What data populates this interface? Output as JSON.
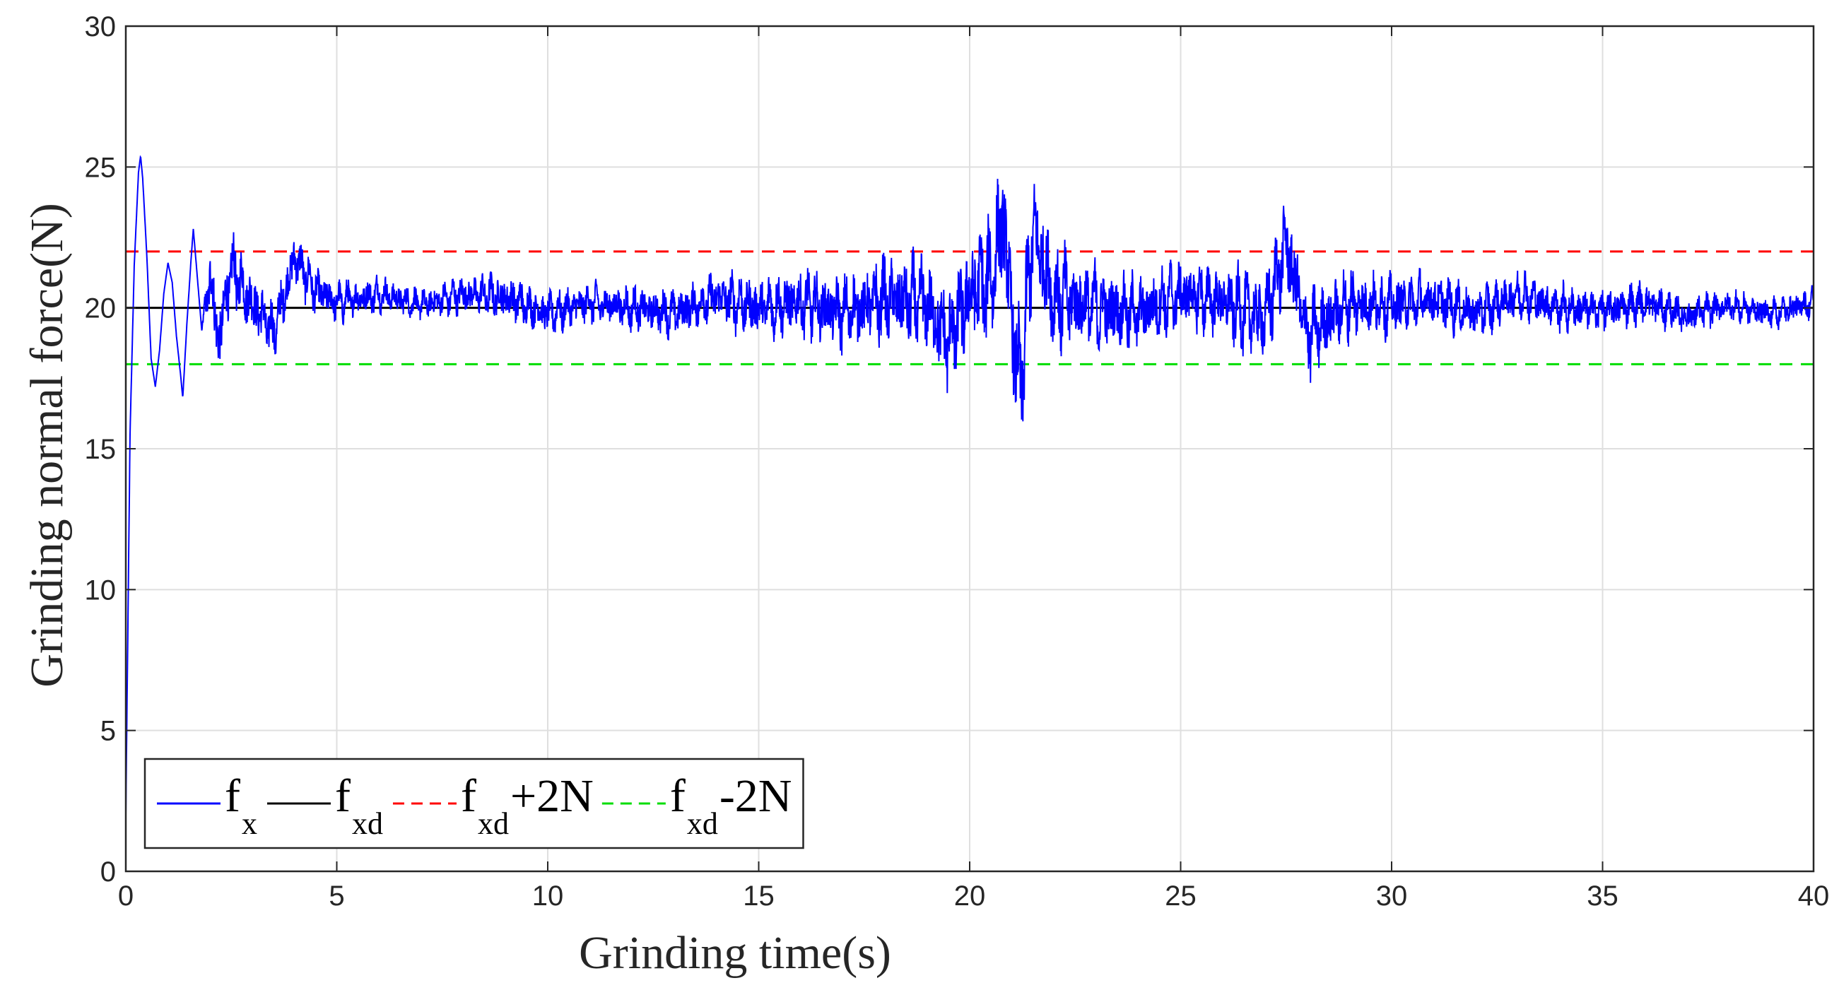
{
  "chart_data": {
    "type": "line",
    "xlabel": "Grinding time(s)",
    "ylabel": "Grinding normal force(N)",
    "xlim": [
      0,
      40
    ],
    "ylim": [
      0,
      30
    ],
    "x_ticks": [
      0,
      5,
      10,
      15,
      20,
      25,
      30,
      35,
      40
    ],
    "y_ticks": [
      0,
      5,
      10,
      15,
      20,
      25,
      30
    ],
    "grid": true,
    "legend_position": "bottom-left",
    "legend_orientation": "horizontal",
    "series": [
      {
        "name": "f_x",
        "label_main": "f",
        "label_sub": "x",
        "label_suffix": "",
        "color": "#0000ff",
        "style": "solid",
        "points": [
          [
            0.0,
            2.0
          ],
          [
            0.1,
            15.5
          ],
          [
            0.2,
            21.5
          ],
          [
            0.3,
            24.8
          ],
          [
            0.35,
            25.4
          ],
          [
            0.4,
            24.6
          ],
          [
            0.5,
            21.8
          ],
          [
            0.6,
            18.2
          ],
          [
            0.7,
            17.2
          ],
          [
            0.8,
            18.5
          ],
          [
            0.9,
            20.5
          ],
          [
            1.0,
            21.6
          ],
          [
            1.1,
            20.9
          ],
          [
            1.2,
            19.0
          ],
          [
            1.3,
            17.6
          ],
          [
            1.35,
            16.8
          ],
          [
            1.45,
            19.5
          ],
          [
            1.55,
            21.8
          ],
          [
            1.6,
            22.8
          ],
          [
            1.7,
            21.0
          ],
          [
            1.8,
            19.2
          ],
          [
            2.0,
            21.2
          ],
          [
            2.2,
            18.8
          ],
          [
            2.5,
            21.4
          ],
          [
            3.0,
            20.2
          ],
          [
            3.5,
            19.1
          ],
          [
            4.0,
            21.8
          ],
          [
            4.5,
            20.6
          ],
          [
            5.0,
            20.2
          ],
          [
            6.0,
            20.5
          ],
          [
            7.0,
            20.1
          ],
          [
            8.0,
            20.5
          ],
          [
            9.0,
            20.4
          ],
          [
            10.0,
            19.8
          ],
          [
            11.0,
            20.2
          ],
          [
            12.0,
            20.0
          ],
          [
            13.0,
            19.8
          ],
          [
            14.0,
            20.4
          ],
          [
            15.0,
            20.0
          ],
          [
            16.0,
            20.2
          ],
          [
            17.0,
            19.8
          ],
          [
            18.0,
            20.3
          ],
          [
            19.0,
            20.1
          ],
          [
            19.5,
            18.8
          ],
          [
            20.0,
            20.5
          ],
          [
            20.5,
            21.0
          ],
          [
            20.8,
            23.2
          ],
          [
            21.0,
            19.5
          ],
          [
            21.2,
            17.0
          ],
          [
            21.5,
            22.8
          ],
          [
            22.0,
            20.4
          ],
          [
            23.0,
            20.0
          ],
          [
            24.0,
            19.8
          ],
          [
            25.0,
            20.5
          ],
          [
            26.0,
            20.2
          ],
          [
            27.0,
            19.6
          ],
          [
            27.5,
            22.3
          ],
          [
            28.0,
            19.0
          ],
          [
            29.0,
            20.2
          ],
          [
            30.0,
            20.1
          ],
          [
            31.0,
            20.3
          ],
          [
            32.0,
            19.8
          ],
          [
            33.0,
            20.5
          ],
          [
            34.0,
            20.0
          ],
          [
            35.0,
            19.9
          ],
          [
            36.0,
            20.2
          ],
          [
            37.0,
            19.7
          ],
          [
            38.0,
            20.1
          ],
          [
            39.0,
            19.8
          ],
          [
            40.0,
            20.2
          ]
        ],
        "envelope": [
          [
            0.0,
            0.0
          ],
          [
            1.8,
            0.0
          ],
          [
            2.0,
            1.5
          ],
          [
            3.0,
            1.3
          ],
          [
            5.0,
            0.8
          ],
          [
            7.0,
            0.6
          ],
          [
            9.0,
            0.9
          ],
          [
            11.0,
            0.8
          ],
          [
            13.0,
            0.9
          ],
          [
            15.0,
            1.2
          ],
          [
            17.0,
            1.4
          ],
          [
            18.5,
            1.8
          ],
          [
            19.5,
            2.0
          ],
          [
            20.5,
            2.5
          ],
          [
            21.2,
            2.6
          ],
          [
            22.5,
            1.8
          ],
          [
            24.0,
            1.4
          ],
          [
            26.0,
            1.4
          ],
          [
            27.5,
            1.9
          ],
          [
            28.5,
            1.5
          ],
          [
            30.0,
            1.2
          ],
          [
            32.0,
            1.0
          ],
          [
            34.0,
            0.9
          ],
          [
            36.0,
            0.8
          ],
          [
            38.0,
            0.6
          ],
          [
            40.0,
            0.6
          ]
        ]
      },
      {
        "name": "f_xd",
        "label_main": "f",
        "label_sub": "xd",
        "label_suffix": "",
        "color": "#000000",
        "style": "solid",
        "value": 20
      },
      {
        "name": "f_xd+2N",
        "label_main": "f",
        "label_sub": "xd",
        "label_suffix": "+2N",
        "color": "#ff0000",
        "style": "dashed",
        "value": 22
      },
      {
        "name": "f_xd-2N",
        "label_main": "f",
        "label_sub": "xd",
        "label_suffix": "-2N",
        "color": "#00dd00",
        "style": "dashed",
        "value": 18
      }
    ]
  }
}
